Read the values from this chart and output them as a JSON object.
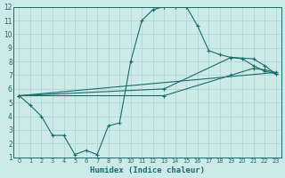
{
  "xlabel": "Humidex (Indice chaleur)",
  "bg_color": "#cceae7",
  "grid_color": "#aad4d0",
  "line_color": "#1a6b6b",
  "xlim": [
    -0.5,
    23.5
  ],
  "ylim": [
    1,
    12
  ],
  "xticks": [
    0,
    1,
    2,
    3,
    4,
    5,
    6,
    7,
    8,
    9,
    10,
    11,
    12,
    13,
    14,
    15,
    16,
    17,
    18,
    19,
    20,
    21,
    22,
    23
  ],
  "yticks": [
    1,
    2,
    3,
    4,
    5,
    6,
    7,
    8,
    9,
    10,
    11,
    12
  ],
  "line1_x": [
    0,
    1,
    2,
    3,
    4,
    5,
    6,
    7,
    8,
    9,
    10,
    11,
    12,
    13,
    14,
    15,
    16,
    17,
    18,
    19,
    20,
    21,
    22,
    23
  ],
  "line1_y": [
    5.5,
    4.8,
    4.0,
    2.6,
    2.6,
    1.2,
    1.5,
    1.2,
    3.3,
    3.5,
    8.0,
    11.0,
    11.8,
    12.0,
    12.0,
    12.0,
    10.6,
    8.8,
    8.5,
    8.3,
    8.2,
    7.7,
    7.3,
    7.1
  ],
  "line2_x": [
    0,
    23
  ],
  "line2_y": [
    5.5,
    7.2
  ],
  "line3_x": [
    0,
    13,
    19,
    21,
    22,
    23
  ],
  "line3_y": [
    5.5,
    6.0,
    8.3,
    8.2,
    7.7,
    7.1
  ],
  "line4_x": [
    0,
    13,
    19,
    21,
    22,
    23
  ],
  "line4_y": [
    5.5,
    5.5,
    7.0,
    7.5,
    7.4,
    7.2
  ]
}
